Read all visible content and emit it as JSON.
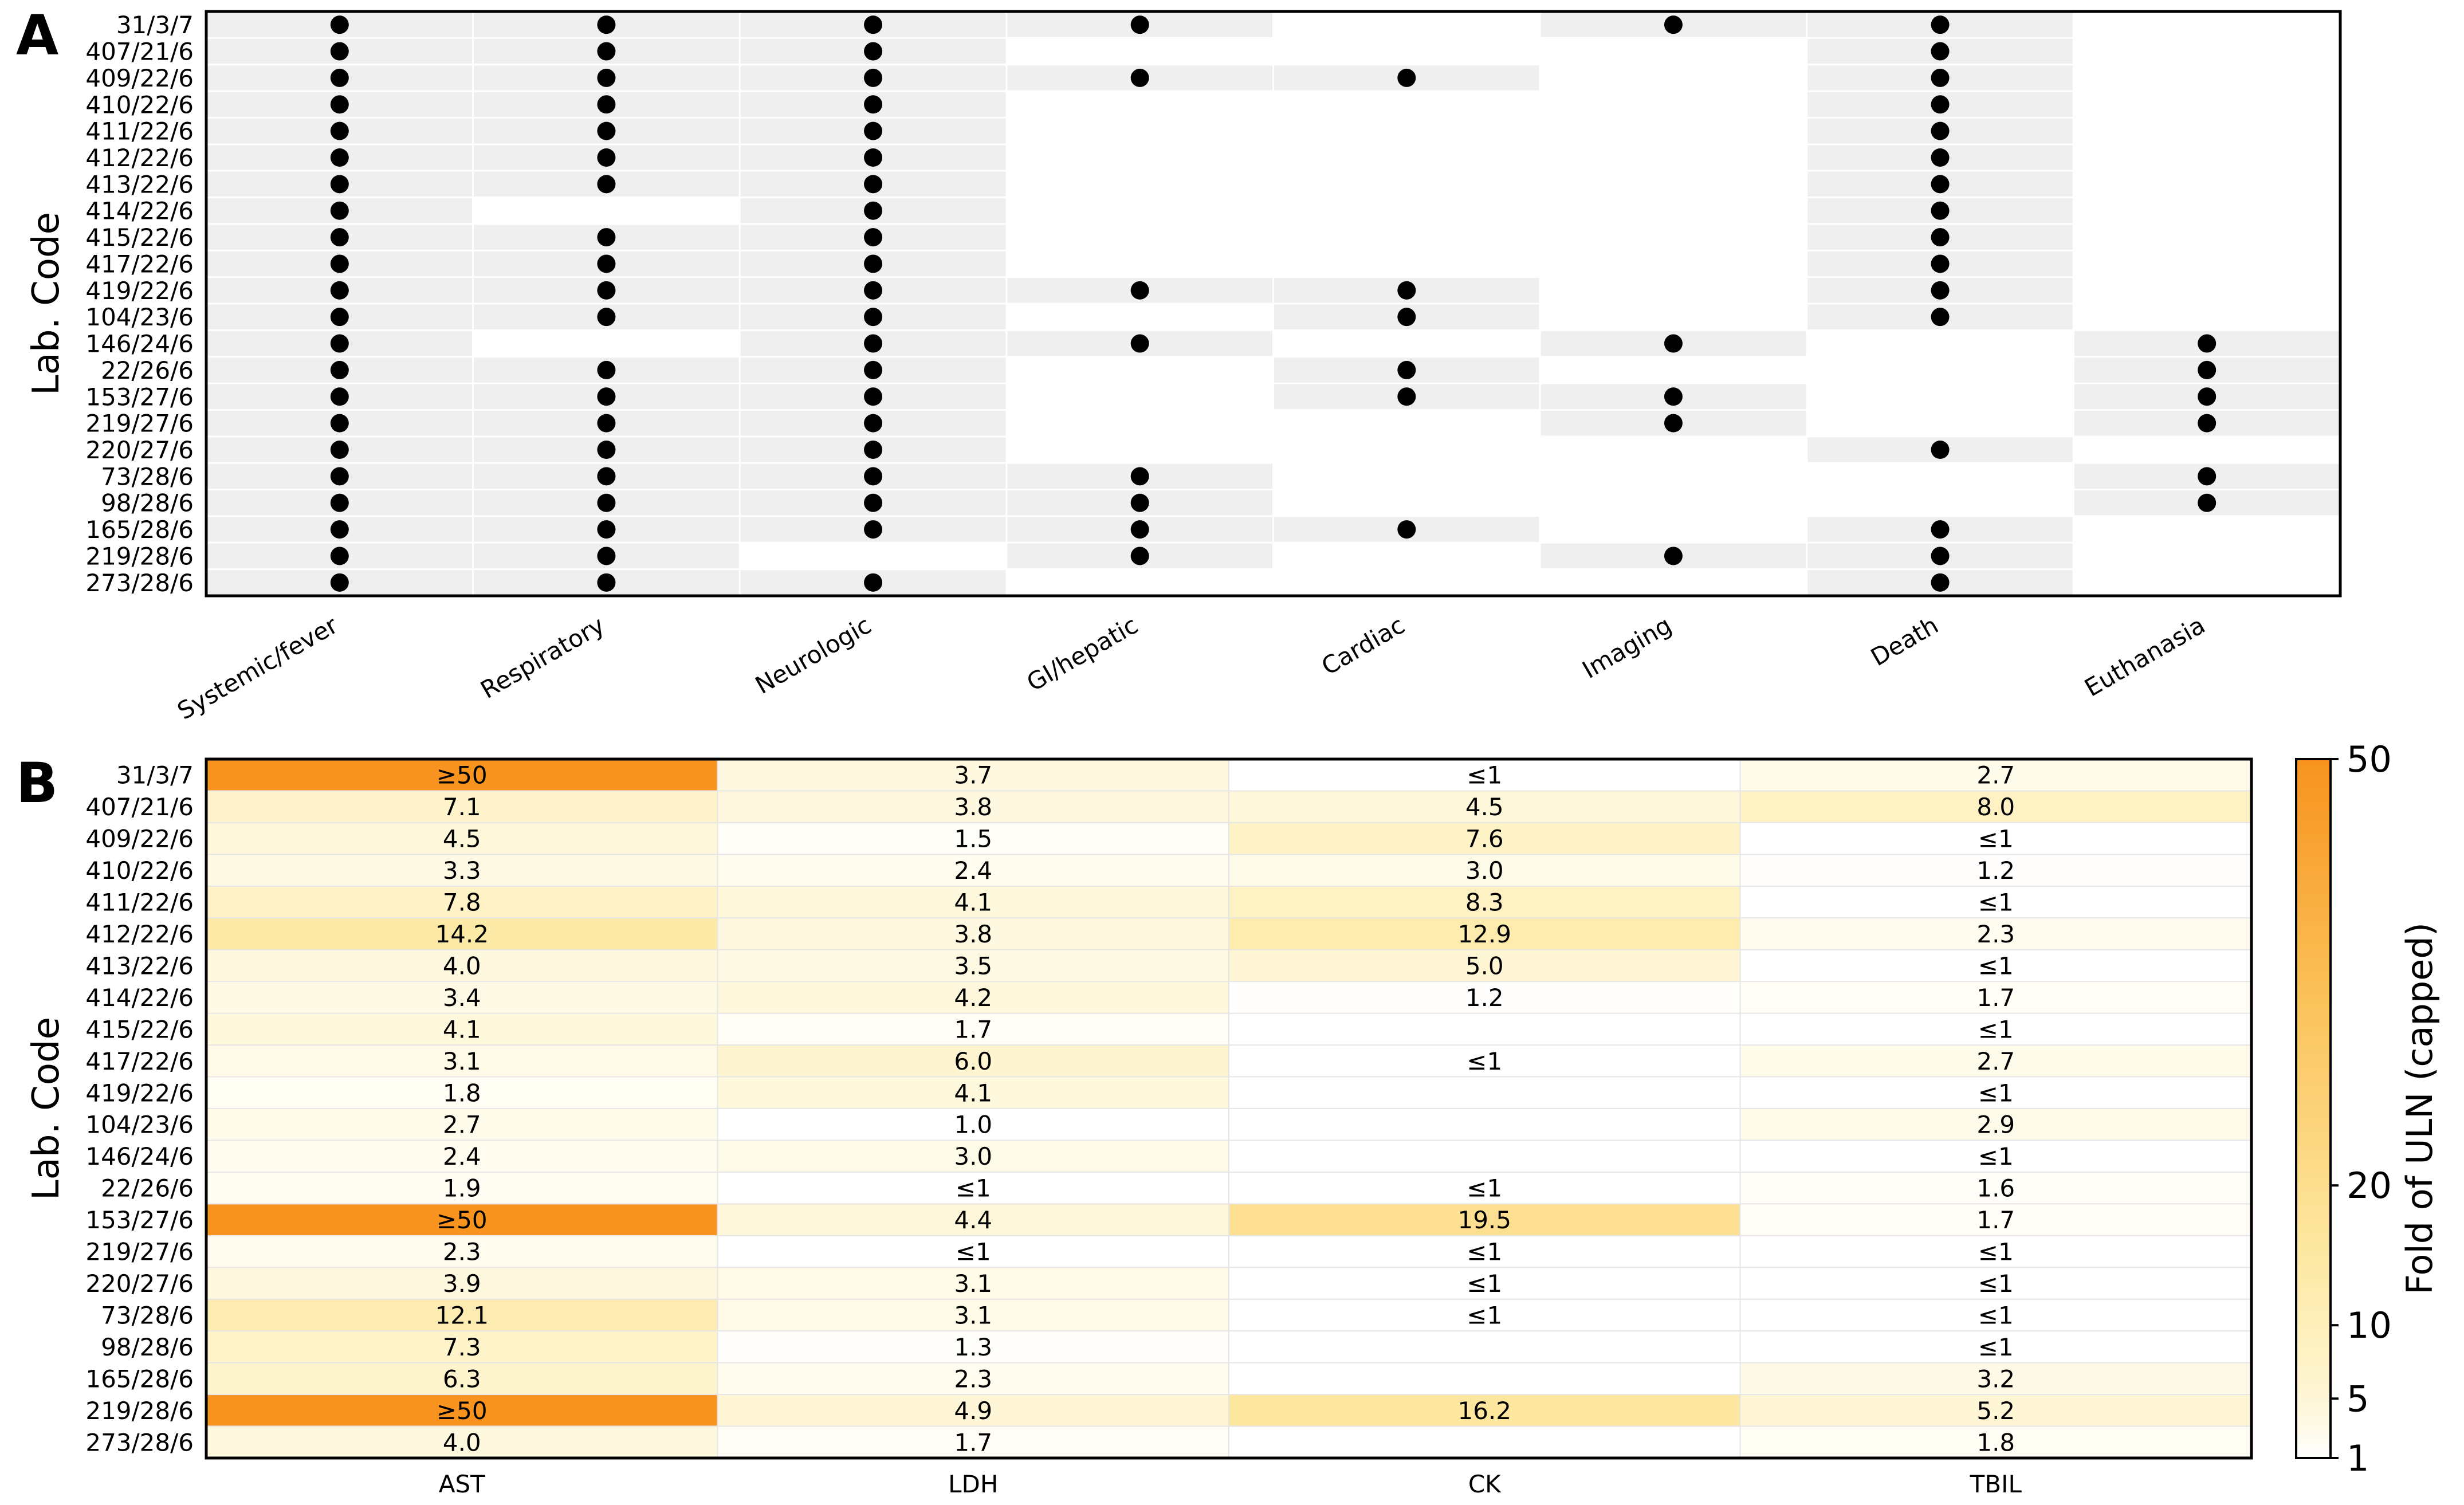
{
  "figure": {
    "panel_a_letter": "A",
    "panel_b_letter": "B"
  },
  "chart_data": [
    {
      "type": "scatter",
      "panel": "A",
      "ylabel": "Lab. Code",
      "xlabel": "",
      "rows": [
        "31/3/7",
        "407/21/6",
        "409/22/6",
        "410/22/6",
        "411/22/6",
        "412/22/6",
        "413/22/6",
        "414/22/6",
        "415/22/6",
        "417/22/6",
        "419/22/6",
        "104/23/6",
        "146/24/6",
        "22/26/6",
        "153/27/6",
        "219/27/6",
        "220/27/6",
        "73/28/6",
        "98/28/6",
        "165/28/6",
        "219/28/6",
        "273/28/6"
      ],
      "columns": [
        "Systemic/fever",
        "Respiratory",
        "Neurologic",
        "GI/hepatic",
        "Cardiac",
        "Imaging",
        "Death",
        "Euthanasia"
      ],
      "presence": [
        [
          1,
          1,
          1,
          1,
          0,
          1,
          1,
          0
        ],
        [
          1,
          1,
          1,
          0,
          0,
          0,
          1,
          0
        ],
        [
          1,
          1,
          1,
          1,
          1,
          0,
          1,
          0
        ],
        [
          1,
          1,
          1,
          0,
          0,
          0,
          1,
          0
        ],
        [
          1,
          1,
          1,
          0,
          0,
          0,
          1,
          0
        ],
        [
          1,
          1,
          1,
          0,
          0,
          0,
          1,
          0
        ],
        [
          1,
          1,
          1,
          0,
          0,
          0,
          1,
          0
        ],
        [
          1,
          0,
          1,
          0,
          0,
          0,
          1,
          0
        ],
        [
          1,
          1,
          1,
          0,
          0,
          0,
          1,
          0
        ],
        [
          1,
          1,
          1,
          0,
          0,
          0,
          1,
          0
        ],
        [
          1,
          1,
          1,
          1,
          1,
          0,
          1,
          0
        ],
        [
          1,
          1,
          1,
          0,
          1,
          0,
          1,
          0
        ],
        [
          1,
          0,
          1,
          1,
          0,
          1,
          0,
          1
        ],
        [
          1,
          1,
          1,
          0,
          1,
          0,
          0,
          1
        ],
        [
          1,
          1,
          1,
          0,
          1,
          1,
          0,
          1
        ],
        [
          1,
          1,
          1,
          0,
          0,
          1,
          0,
          1
        ],
        [
          1,
          1,
          1,
          0,
          0,
          0,
          1,
          0
        ],
        [
          1,
          1,
          1,
          1,
          0,
          0,
          0,
          1
        ],
        [
          1,
          1,
          1,
          1,
          0,
          0,
          0,
          1
        ],
        [
          1,
          1,
          1,
          1,
          1,
          0,
          1,
          0
        ],
        [
          1,
          1,
          0,
          1,
          0,
          1,
          1,
          0
        ],
        [
          1,
          1,
          1,
          0,
          0,
          0,
          1,
          0
        ]
      ],
      "colors": {
        "present_shade": "#efefef",
        "absent_shade": "#ffffff",
        "dot": "#000000"
      }
    },
    {
      "type": "heatmap",
      "panel": "B",
      "ylabel": "Lab. Code",
      "xlabel": "",
      "rows": [
        "31/3/7",
        "407/21/6",
        "409/22/6",
        "410/22/6",
        "411/22/6",
        "412/22/6",
        "413/22/6",
        "414/22/6",
        "415/22/6",
        "417/22/6",
        "419/22/6",
        "104/23/6",
        "146/24/6",
        "22/26/6",
        "153/27/6",
        "219/27/6",
        "220/27/6",
        "73/28/6",
        "98/28/6",
        "165/28/6",
        "219/28/6",
        "273/28/6"
      ],
      "columns": [
        "AST",
        "LDH",
        "CK",
        "TBIL"
      ],
      "values": [
        [
          50,
          3.7,
          1,
          2.7
        ],
        [
          7.1,
          3.8,
          4.5,
          8.0
        ],
        [
          4.5,
          1.5,
          7.6,
          1
        ],
        [
          3.3,
          2.4,
          3.0,
          1.2
        ],
        [
          7.8,
          4.1,
          8.3,
          1
        ],
        [
          14.2,
          3.8,
          12.9,
          2.3
        ],
        [
          4.0,
          3.5,
          5.0,
          1
        ],
        [
          3.4,
          4.2,
          1.2,
          1.7
        ],
        [
          4.1,
          1.7,
          null,
          1
        ],
        [
          3.1,
          6.0,
          1,
          2.7
        ],
        [
          1.8,
          4.1,
          null,
          1
        ],
        [
          2.7,
          1.0,
          null,
          2.9
        ],
        [
          2.4,
          3.0,
          null,
          1
        ],
        [
          1.9,
          1,
          1,
          1.6
        ],
        [
          50,
          4.4,
          19.5,
          1.7
        ],
        [
          2.3,
          1,
          1,
          1
        ],
        [
          3.9,
          3.1,
          1,
          1
        ],
        [
          12.1,
          3.1,
          1,
          1
        ],
        [
          7.3,
          1.3,
          null,
          1
        ],
        [
          6.3,
          2.3,
          null,
          3.2
        ],
        [
          50,
          4.9,
          16.2,
          5.2
        ],
        [
          4.0,
          1.7,
          null,
          1.8
        ]
      ],
      "labels": [
        [
          "≥50",
          "3.7",
          "≤1",
          "2.7"
        ],
        [
          "7.1",
          "3.8",
          "4.5",
          "8.0"
        ],
        [
          "4.5",
          "1.5",
          "7.6",
          "≤1"
        ],
        [
          "3.3",
          "2.4",
          "3.0",
          "1.2"
        ],
        [
          "7.8",
          "4.1",
          "8.3",
          "≤1"
        ],
        [
          "14.2",
          "3.8",
          "12.9",
          "2.3"
        ],
        [
          "4.0",
          "3.5",
          "5.0",
          "≤1"
        ],
        [
          "3.4",
          "4.2",
          "1.2",
          "1.7"
        ],
        [
          "4.1",
          "1.7",
          "",
          "≤1"
        ],
        [
          "3.1",
          "6.0",
          "≤1",
          "2.7"
        ],
        [
          "1.8",
          "4.1",
          "",
          "≤1"
        ],
        [
          "2.7",
          "1.0",
          "",
          "2.9"
        ],
        [
          "2.4",
          "3.0",
          "",
          "≤1"
        ],
        [
          "1.9",
          "≤1",
          "≤1",
          "1.6"
        ],
        [
          "≥50",
          "4.4",
          "19.5",
          "1.7"
        ],
        [
          "2.3",
          "≤1",
          "≤1",
          "≤1"
        ],
        [
          "3.9",
          "3.1",
          "≤1",
          "≤1"
        ],
        [
          "12.1",
          "3.1",
          "≤1",
          "≤1"
        ],
        [
          "7.3",
          "1.3",
          "",
          "≤1"
        ],
        [
          "6.3",
          "2.3",
          "",
          "3.2"
        ],
        [
          "≥50",
          "4.9",
          "16.2",
          "5.2"
        ],
        [
          "4.0",
          "1.7",
          "",
          "1.8"
        ]
      ],
      "colorbar": {
        "label": "Fold of ULN (capped)",
        "ticks": [
          1,
          5,
          10,
          20,
          50
        ],
        "tick_labels": [
          "1",
          "5",
          "10",
          "20",
          "50"
        ],
        "range": [
          1,
          50
        ],
        "scale": "sqrt-like",
        "colors": [
          "#ffffff",
          "#fef6d6",
          "#fde9a3",
          "#fbc25a",
          "#f7931e"
        ]
      }
    }
  ]
}
